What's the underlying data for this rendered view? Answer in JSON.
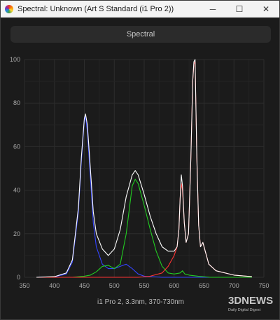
{
  "window": {
    "title": "Spectral: Unknown (Art S Standard (i1 Pro 2))",
    "controls": {
      "minimize": "─",
      "maximize": "☐",
      "close": "✕"
    }
  },
  "toolbar": {
    "spectral_button": "Spectral"
  },
  "chart_data": {
    "type": "line",
    "title": "",
    "xlabel": "i1 Pro 2, 3.3nm, 370-730nm",
    "ylabel": "",
    "xlim": [
      350,
      750
    ],
    "ylim": [
      0,
      100
    ],
    "x_ticks": [
      350,
      400,
      450,
      500,
      550,
      600,
      650,
      700,
      750
    ],
    "y_ticks": [
      0,
      20,
      40,
      60,
      80,
      100
    ],
    "grid": true,
    "legend": "none",
    "series": [
      {
        "color": "#ffffff",
        "points": [
          [
            370,
            0
          ],
          [
            400,
            0.3
          ],
          [
            420,
            2
          ],
          [
            430,
            8
          ],
          [
            440,
            32
          ],
          [
            445,
            55
          ],
          [
            450,
            73
          ],
          [
            452,
            75
          ],
          [
            455,
            70
          ],
          [
            460,
            50
          ],
          [
            465,
            30
          ],
          [
            470,
            20
          ],
          [
            480,
            13
          ],
          [
            490,
            10
          ],
          [
            500,
            13
          ],
          [
            510,
            22
          ],
          [
            520,
            37
          ],
          [
            530,
            47
          ],
          [
            535,
            49
          ],
          [
            540,
            47
          ],
          [
            550,
            38
          ],
          [
            560,
            28
          ],
          [
            570,
            20
          ],
          [
            580,
            14
          ],
          [
            590,
            12
          ],
          [
            600,
            12
          ],
          [
            605,
            14
          ],
          [
            608,
            22
          ],
          [
            610,
            36
          ],
          [
            612,
            47
          ],
          [
            614,
            42
          ],
          [
            617,
            25
          ],
          [
            620,
            16
          ],
          [
            624,
            20
          ],
          [
            628,
            55
          ],
          [
            631,
            90
          ],
          [
            633,
            99
          ],
          [
            635,
            100
          ],
          [
            638,
            55
          ],
          [
            641,
            24
          ],
          [
            644,
            14
          ],
          [
            648,
            16
          ],
          [
            652,
            12
          ],
          [
            658,
            6
          ],
          [
            670,
            3
          ],
          [
            700,
            1
          ],
          [
            730,
            0.3
          ]
        ]
      },
      {
        "color": "#3344ff",
        "points": [
          [
            370,
            0
          ],
          [
            400,
            0.2
          ],
          [
            420,
            1.5
          ],
          [
            430,
            7
          ],
          [
            440,
            30
          ],
          [
            445,
            53
          ],
          [
            450,
            72
          ],
          [
            452,
            74
          ],
          [
            455,
            67
          ],
          [
            460,
            46
          ],
          [
            465,
            25
          ],
          [
            470,
            14
          ],
          [
            480,
            6
          ],
          [
            490,
            4
          ],
          [
            500,
            4
          ],
          [
            510,
            5
          ],
          [
            520,
            6
          ],
          [
            530,
            4
          ],
          [
            540,
            1.5
          ],
          [
            550,
            0.5
          ],
          [
            580,
            0
          ],
          [
            730,
            0
          ]
        ]
      },
      {
        "color": "#22cc22",
        "points": [
          [
            370,
            0
          ],
          [
            430,
            0
          ],
          [
            450,
            0.5
          ],
          [
            460,
            1
          ],
          [
            470,
            2.5
          ],
          [
            480,
            5
          ],
          [
            490,
            5.5
          ],
          [
            500,
            4
          ],
          [
            510,
            6
          ],
          [
            520,
            20
          ],
          [
            530,
            42
          ],
          [
            535,
            45
          ],
          [
            540,
            43
          ],
          [
            550,
            33
          ],
          [
            560,
            22
          ],
          [
            570,
            12
          ],
          [
            580,
            5
          ],
          [
            590,
            2
          ],
          [
            600,
            1.5
          ],
          [
            610,
            2
          ],
          [
            614,
            3
          ],
          [
            618,
            1.5
          ],
          [
            625,
            1
          ],
          [
            640,
            0.5
          ],
          [
            660,
            0
          ],
          [
            730,
            0
          ]
        ]
      },
      {
        "color": "#ff3333",
        "points": [
          [
            370,
            0
          ],
          [
            540,
            0
          ],
          [
            560,
            0.5
          ],
          [
            580,
            2
          ],
          [
            590,
            5
          ],
          [
            600,
            10
          ],
          [
            605,
            14
          ],
          [
            608,
            22
          ],
          [
            610,
            36
          ],
          [
            612,
            43
          ],
          [
            614,
            40
          ],
          [
            617,
            25
          ],
          [
            620,
            16
          ],
          [
            624,
            20
          ],
          [
            628,
            55
          ],
          [
            631,
            90
          ],
          [
            633,
            98
          ],
          [
            635,
            99
          ],
          [
            638,
            55
          ],
          [
            641,
            24
          ],
          [
            644,
            14
          ],
          [
            648,
            16
          ],
          [
            652,
            12
          ],
          [
            658,
            6
          ],
          [
            670,
            3
          ],
          [
            700,
            1
          ],
          [
            730,
            0.3
          ]
        ]
      }
    ]
  },
  "watermark": {
    "brand_big": "3DNEWS",
    "brand_small": "Daily Digital Digest"
  }
}
